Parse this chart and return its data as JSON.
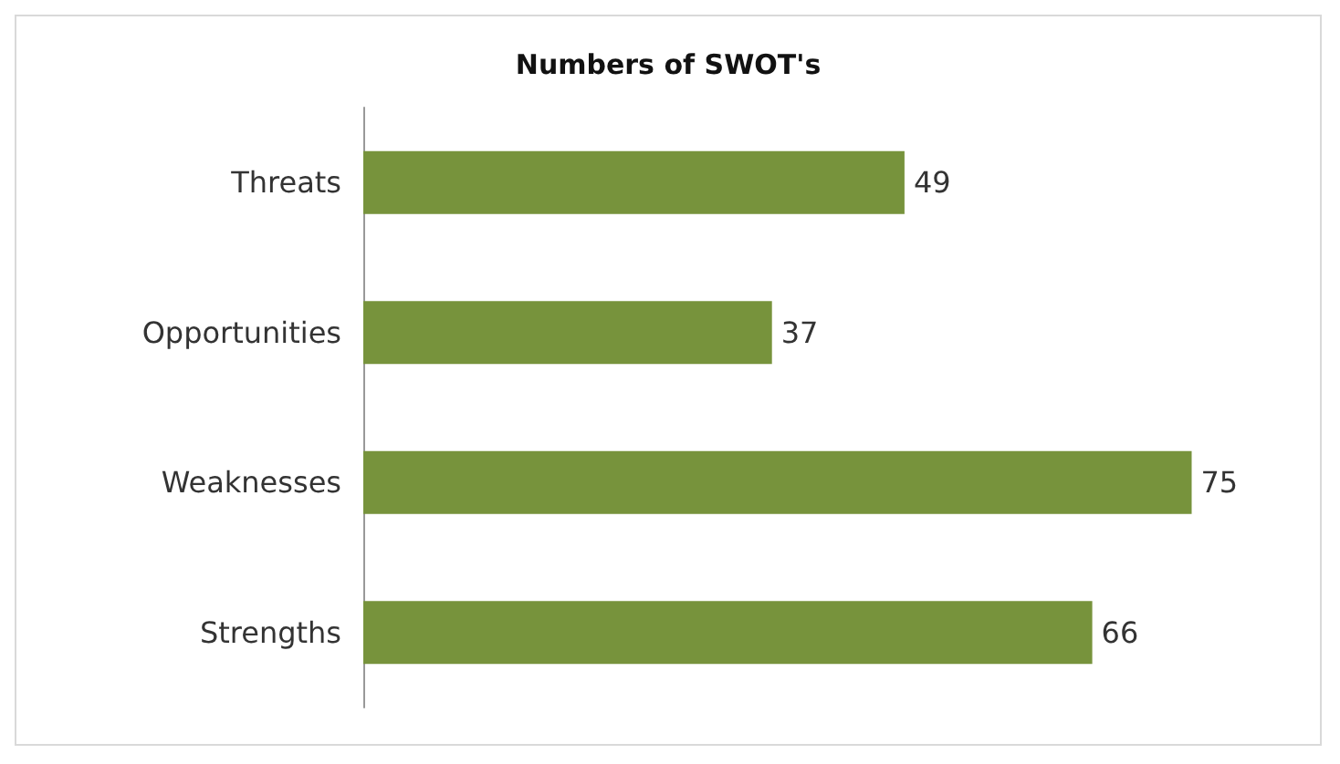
{
  "chart_data": {
    "type": "bar",
    "title": "Numbers of SWOT's",
    "orientation": "horizontal",
    "categories": [
      "Threats",
      "Opportunities",
      "Weaknesses",
      "Strengths"
    ],
    "values": [
      49,
      37,
      75,
      66
    ],
    "color": "#77933c",
    "data_labels": true
  }
}
